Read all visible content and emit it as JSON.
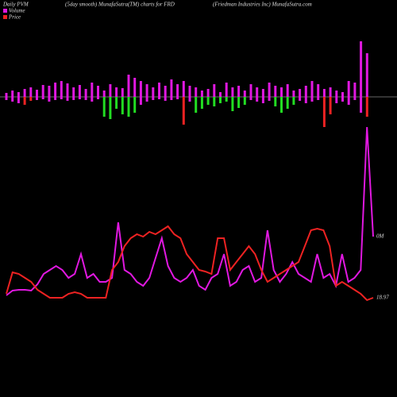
{
  "chart_data": {
    "type": "bar",
    "title": "(5day smooth) MunafaSutra(TM) charts for FRD",
    "subtitle": "(Friedman Industries Inc) MunafaSutra.com",
    "corner_label": "Daily PVM",
    "bars": {
      "up_color": "#e018e0",
      "up": [
        5,
        8,
        6,
        10,
        12,
        9,
        15,
        14,
        18,
        20,
        17,
        12,
        15,
        10,
        18,
        14,
        8,
        16,
        12,
        11,
        28,
        24,
        20,
        16,
        12,
        18,
        14,
        22,
        16,
        20,
        14,
        12,
        8,
        10,
        16,
        6,
        18,
        12,
        14,
        8,
        16,
        12,
        10,
        18,
        14,
        12,
        16,
        8,
        10,
        14,
        20,
        16,
        10,
        12,
        8,
        6,
        20,
        18,
        70,
        55
      ],
      "down": [
        4,
        6,
        8,
        10,
        5,
        4,
        3,
        6,
        4,
        3,
        5,
        4,
        3,
        4,
        6,
        3,
        25,
        28,
        15,
        22,
        25,
        20,
        10,
        6,
        4,
        3,
        5,
        4,
        3,
        35,
        6,
        20,
        15,
        10,
        12,
        8,
        6,
        18,
        14,
        10,
        4,
        6,
        8,
        5,
        12,
        20,
        15,
        10,
        5,
        8,
        6,
        4,
        38,
        22,
        8,
        6,
        10,
        4,
        20,
        25
      ],
      "down_colors": [
        "#e018e0",
        "#e018e0",
        "#e018e0",
        "#ee2222",
        "#ee2222",
        "#e018e0",
        "#e018e0",
        "#e018e0",
        "#e018e0",
        "#e018e0",
        "#e018e0",
        "#e018e0",
        "#e018e0",
        "#e018e0",
        "#e018e0",
        "#e018e0",
        "#22dd22",
        "#22dd22",
        "#22dd22",
        "#22dd22",
        "#22dd22",
        "#22dd22",
        "#e018e0",
        "#e018e0",
        "#e018e0",
        "#e018e0",
        "#e018e0",
        "#e018e0",
        "#e018e0",
        "#ee2222",
        "#e018e0",
        "#22dd22",
        "#22dd22",
        "#22dd22",
        "#22dd22",
        "#22dd22",
        "#22dd22",
        "#22dd22",
        "#22dd22",
        "#22dd22",
        "#e018e0",
        "#e018e0",
        "#e018e0",
        "#e018e0",
        "#22dd22",
        "#22dd22",
        "#22dd22",
        "#22dd22",
        "#e018e0",
        "#e018e0",
        "#e018e0",
        "#e018e0",
        "#ee2222",
        "#ee2222",
        "#e018e0",
        "#e018e0",
        "#e018e0",
        "#e018e0",
        "#e018e0",
        "#ee2222"
      ]
    },
    "series": [
      {
        "name": "Volume",
        "color": "#e018e0",
        "end_label": "0M",
        "values": [
          8,
          14,
          15,
          15,
          14,
          22,
          35,
          40,
          45,
          40,
          30,
          35,
          60,
          30,
          35,
          25,
          25,
          30,
          100,
          40,
          35,
          25,
          20,
          30,
          55,
          80,
          45,
          30,
          25,
          30,
          40,
          20,
          15,
          30,
          35,
          60,
          20,
          25,
          40,
          45,
          25,
          30,
          90,
          40,
          25,
          35,
          50,
          35,
          30,
          25,
          60,
          30,
          35,
          20,
          60,
          25,
          30,
          40,
          220,
          82
        ]
      },
      {
        "name": "Price",
        "color": "#ee2222",
        "end_label": "18.97",
        "values": [
          10,
          37,
          35,
          30,
          25,
          15,
          10,
          5,
          5,
          5,
          10,
          12,
          10,
          5,
          5,
          5,
          5,
          40,
          50,
          70,
          80,
          85,
          82,
          88,
          85,
          90,
          95,
          85,
          80,
          60,
          50,
          40,
          38,
          35,
          80,
          80,
          40,
          50,
          60,
          70,
          60,
          40,
          25,
          30,
          35,
          40,
          45,
          50,
          70,
          90,
          92,
          90,
          70,
          20,
          25,
          20,
          15,
          10,
          2,
          5
        ]
      }
    ]
  }
}
